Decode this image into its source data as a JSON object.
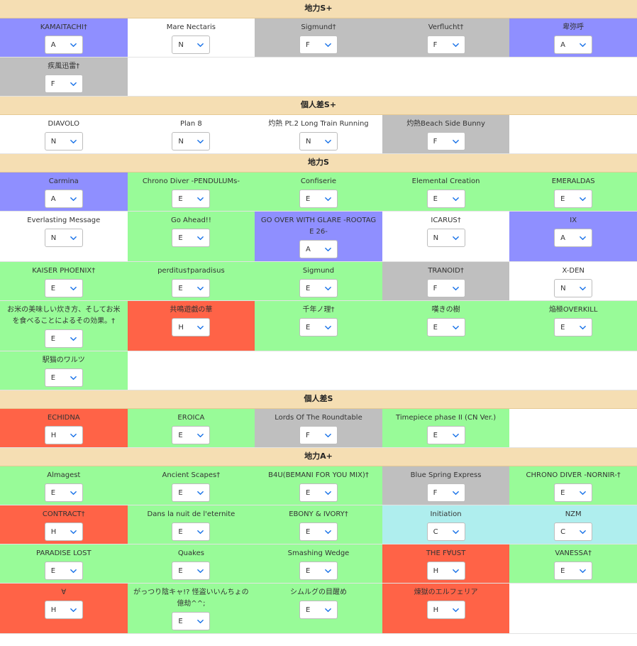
{
  "colors": {
    "A": "#8f8fff",
    "N": "#ffffff",
    "F": "#bfbfbf",
    "E": "#98fb98",
    "H": "#ff6347",
    "C": "#afeeee",
    "header": "#f5deb3"
  },
  "sections": [
    {
      "title": "地力S+",
      "rows": [
        [
          {
            "title": "KAMAITACHI†",
            "value": "A"
          },
          {
            "title": "Mare Nectaris",
            "value": "N"
          },
          {
            "title": "Sigmund†",
            "value": "F"
          },
          {
            "title": "Verflucht†",
            "value": "F"
          },
          {
            "title": "卑弥呼",
            "value": "A"
          }
        ],
        [
          {
            "title": "疾風迅雷†",
            "value": "F"
          }
        ]
      ]
    },
    {
      "title": "個人差S+",
      "rows": [
        [
          {
            "title": "DIAVOLO",
            "value": "N"
          },
          {
            "title": "Plan 8",
            "value": "N"
          },
          {
            "title": "灼熱 Pt.2 Long Train Running",
            "value": "N"
          },
          {
            "title": "灼熱Beach Side Bunny",
            "value": "F"
          }
        ]
      ]
    },
    {
      "title": "地力S",
      "rows": [
        [
          {
            "title": "Carmina",
            "value": "A"
          },
          {
            "title": "Chrono Diver -PENDULUMs-",
            "value": "E"
          },
          {
            "title": "Confiserie",
            "value": "E"
          },
          {
            "title": "Elemental Creation",
            "value": "E"
          },
          {
            "title": "EMERALDAS",
            "value": "E"
          }
        ],
        [
          {
            "title": "Everlasting Message",
            "value": "N"
          },
          {
            "title": "Go Ahead!!",
            "value": "E"
          },
          {
            "title": "GO OVER WITH GLARE -ROOTAGE 26-",
            "value": "A"
          },
          {
            "title": "ICARUS†",
            "value": "N"
          },
          {
            "title": "IX",
            "value": "A"
          }
        ],
        [
          {
            "title": "KAISER PHOENIX†",
            "value": "E"
          },
          {
            "title": "perditus†paradisus",
            "value": "E"
          },
          {
            "title": "Sigmund",
            "value": "E"
          },
          {
            "title": "TRANOID†",
            "value": "F"
          },
          {
            "title": "X-DEN",
            "value": "N"
          }
        ],
        [
          {
            "title": "お米の美味しい炊き方、そしてお米を食べることによるその効果。†",
            "value": "E"
          },
          {
            "title": "共鳴遊戯の華",
            "value": "H"
          },
          {
            "title": "千年ノ理†",
            "value": "E"
          },
          {
            "title": "嘆きの樹",
            "value": "E"
          },
          {
            "title": "焔極OVERKILL",
            "value": "E"
          }
        ],
        [
          {
            "title": "駅猫のワルツ",
            "value": "E"
          }
        ]
      ]
    },
    {
      "title": "個人差S",
      "rows": [
        [
          {
            "title": "ECHIDNA",
            "value": "H"
          },
          {
            "title": "EROICA",
            "value": "E"
          },
          {
            "title": "Lords Of The Roundtable",
            "value": "F"
          },
          {
            "title": "Timepiece phase II (CN Ver.)",
            "value": "E"
          }
        ]
      ]
    },
    {
      "title": "地力A+",
      "rows": [
        [
          {
            "title": "Almagest",
            "value": "E"
          },
          {
            "title": "Ancient Scapes†",
            "value": "E"
          },
          {
            "title": "B4U(BEMANI FOR YOU MIX)†",
            "value": "E"
          },
          {
            "title": "Blue Spring Express",
            "value": "F"
          },
          {
            "title": "CHRONO DIVER -NORNIR-†",
            "value": "E"
          }
        ],
        [
          {
            "title": "CONTRACT†",
            "value": "H"
          },
          {
            "title": "Dans la nuit de l'eternite",
            "value": "E"
          },
          {
            "title": "EBONY & IVORY†",
            "value": "E"
          },
          {
            "title": "Initiation",
            "value": "C"
          },
          {
            "title": "NZM",
            "value": "C"
          }
        ],
        [
          {
            "title": "PARADISE LOST",
            "value": "E"
          },
          {
            "title": "Quakes",
            "value": "E"
          },
          {
            "title": "Smashing Wedge",
            "value": "E"
          },
          {
            "title": "THE F∀UST",
            "value": "H"
          },
          {
            "title": "VANESSA†",
            "value": "E"
          }
        ],
        [
          {
            "title": "∀",
            "value": "H"
          },
          {
            "title": "がっつり陰キャ!? 怪盗いいんちょの億劫^^;",
            "value": "E"
          },
          {
            "title": "シムルグの目醒め",
            "value": "E"
          },
          {
            "title": "煉獄のエルフェリア",
            "value": "H"
          }
        ]
      ]
    }
  ]
}
